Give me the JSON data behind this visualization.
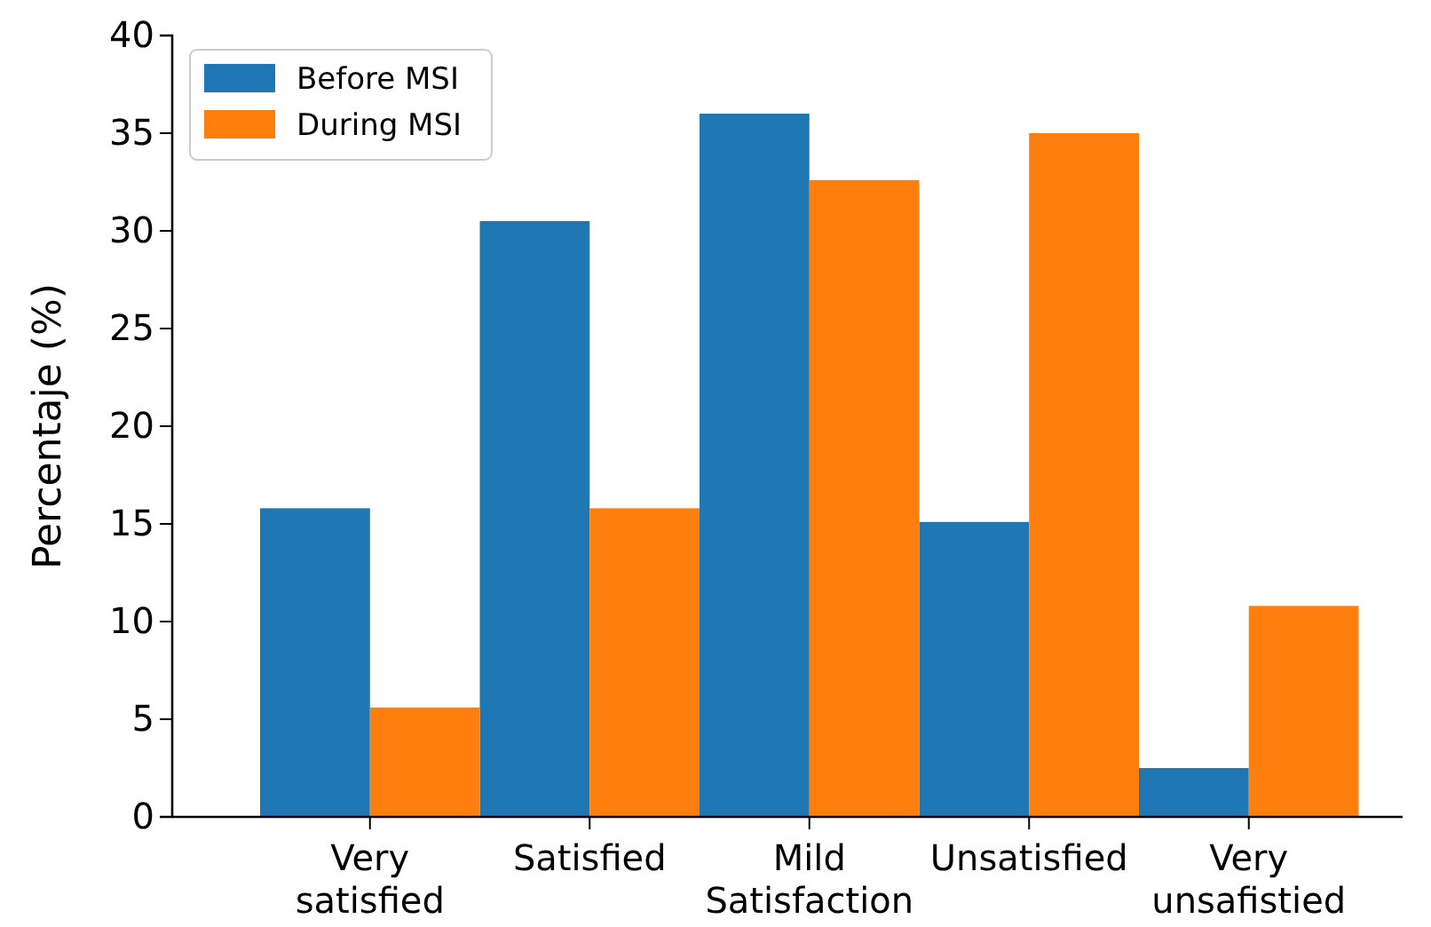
{
  "chart_data": {
    "type": "bar",
    "ylabel": "Percentaje (%)",
    "categories": [
      "Very satisfied",
      "Satisfied",
      "Mild Satisfaction",
      "Unsatisfied",
      "Very unsafistied"
    ],
    "series": [
      {
        "name": "Before MSI",
        "color": "#1f77b4",
        "values": [
          15.8,
          30.5,
          36,
          15.1,
          2.5
        ]
      },
      {
        "name": "During MSI",
        "color": "#ff7f0e",
        "values": [
          5.6,
          15.8,
          32.6,
          35,
          10.8
        ]
      }
    ],
    "ylim": [
      0,
      40
    ],
    "yticks": [
      0,
      5,
      10,
      15,
      20,
      25,
      30,
      35,
      40
    ],
    "legend": "top left",
    "grid": false
  }
}
